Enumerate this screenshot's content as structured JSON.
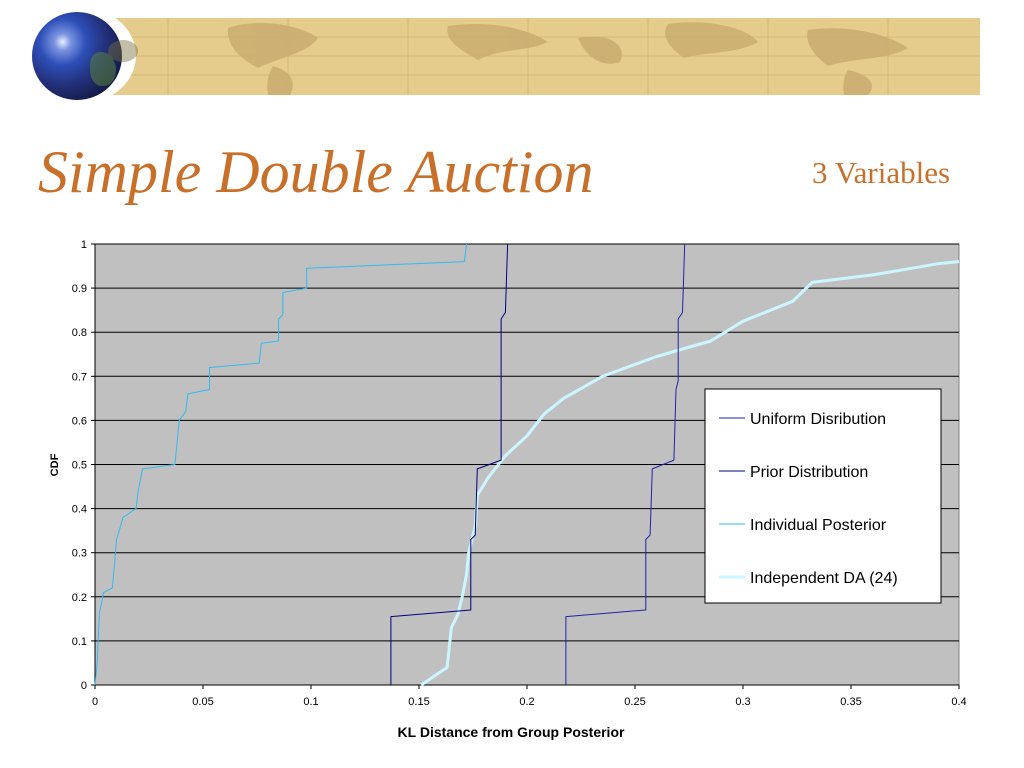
{
  "slide": {
    "title": "Simple Double Auction",
    "subtitle": "3 Variables"
  },
  "colors": {
    "title": "#c8702a",
    "banner": "#e6cc8c",
    "plot_bg": "#c0c0c0"
  },
  "chart_data": {
    "type": "line",
    "xlabel": "KL Distance from Group Posterior",
    "ylabel": "CDF",
    "xlim": [
      0,
      0.4
    ],
    "ylim": [
      0,
      1
    ],
    "x_ticks": [
      "0",
      "0.05",
      "0.1",
      "0.15",
      "0.2",
      "0.25",
      "0.3",
      "0.35",
      "0.4"
    ],
    "y_ticks": [
      "0",
      "0.1",
      "0.2",
      "0.3",
      "0.4",
      "0.5",
      "0.6",
      "0.7",
      "0.8",
      "0.9",
      "1"
    ],
    "grid": "horizontal",
    "legend_position": "right",
    "series": [
      {
        "name": "Uniform Disribution",
        "color": "#2222aa",
        "width": 1,
        "points": [
          [
            0.218,
            0
          ],
          [
            0.218,
            0.155
          ],
          [
            0.255,
            0.17
          ],
          [
            0.255,
            0.33
          ],
          [
            0.257,
            0.34
          ],
          [
            0.258,
            0.49
          ],
          [
            0.268,
            0.51
          ],
          [
            0.269,
            0.67
          ],
          [
            0.27,
            0.69
          ],
          [
            0.27,
            0.83
          ],
          [
            0.272,
            0.845
          ],
          [
            0.273,
            1
          ]
        ]
      },
      {
        "name": "Prior Distribution",
        "color": "#000080",
        "width": 1,
        "points": [
          [
            0.137,
            0
          ],
          [
            0.137,
            0.155
          ],
          [
            0.174,
            0.17
          ],
          [
            0.174,
            0.33
          ],
          [
            0.176,
            0.34
          ],
          [
            0.177,
            0.49
          ],
          [
            0.188,
            0.51
          ],
          [
            0.188,
            0.67
          ],
          [
            0.188,
            0.69
          ],
          [
            0.188,
            0.83
          ],
          [
            0.19,
            0.845
          ],
          [
            0.191,
            1
          ]
        ]
      },
      {
        "name": "Individual Posterior",
        "color": "#33bbee",
        "width": 1,
        "points": [
          [
            0,
            0
          ],
          [
            0.001,
            0.05
          ],
          [
            0.002,
            0.16
          ],
          [
            0.004,
            0.21
          ],
          [
            0.008,
            0.22
          ],
          [
            0.009,
            0.27
          ],
          [
            0.01,
            0.33
          ],
          [
            0.013,
            0.38
          ],
          [
            0.019,
            0.4
          ],
          [
            0.02,
            0.44
          ],
          [
            0.022,
            0.49
          ],
          [
            0.037,
            0.5
          ],
          [
            0.038,
            0.55
          ],
          [
            0.039,
            0.6
          ],
          [
            0.042,
            0.62
          ],
          [
            0.043,
            0.66
          ],
          [
            0.053,
            0.67
          ],
          [
            0.053,
            0.72
          ],
          [
            0.076,
            0.73
          ],
          [
            0.077,
            0.775
          ],
          [
            0.085,
            0.78
          ],
          [
            0.085,
            0.83
          ],
          [
            0.087,
            0.84
          ],
          [
            0.087,
            0.89
          ],
          [
            0.098,
            0.9
          ],
          [
            0.098,
            0.945
          ],
          [
            0.171,
            0.96
          ],
          [
            0.172,
            1
          ]
        ]
      },
      {
        "name": "Independent DA (24)",
        "color": "#ccf6ff",
        "width": 3,
        "points": [
          [
            0.151,
            0
          ],
          [
            0.163,
            0.04
          ],
          [
            0.165,
            0.13
          ],
          [
            0.168,
            0.16
          ],
          [
            0.17,
            0.2
          ],
          [
            0.172,
            0.25
          ],
          [
            0.173,
            0.3
          ],
          [
            0.176,
            0.36
          ],
          [
            0.177,
            0.43
          ],
          [
            0.182,
            0.47
          ],
          [
            0.19,
            0.52
          ],
          [
            0.2,
            0.565
          ],
          [
            0.208,
            0.615
          ],
          [
            0.217,
            0.65
          ],
          [
            0.235,
            0.7
          ],
          [
            0.26,
            0.745
          ],
          [
            0.285,
            0.78
          ],
          [
            0.3,
            0.825
          ],
          [
            0.323,
            0.87
          ],
          [
            0.332,
            0.913
          ],
          [
            0.36,
            0.93
          ],
          [
            0.39,
            0.955
          ],
          [
            0.4,
            0.96
          ]
        ]
      }
    ]
  }
}
